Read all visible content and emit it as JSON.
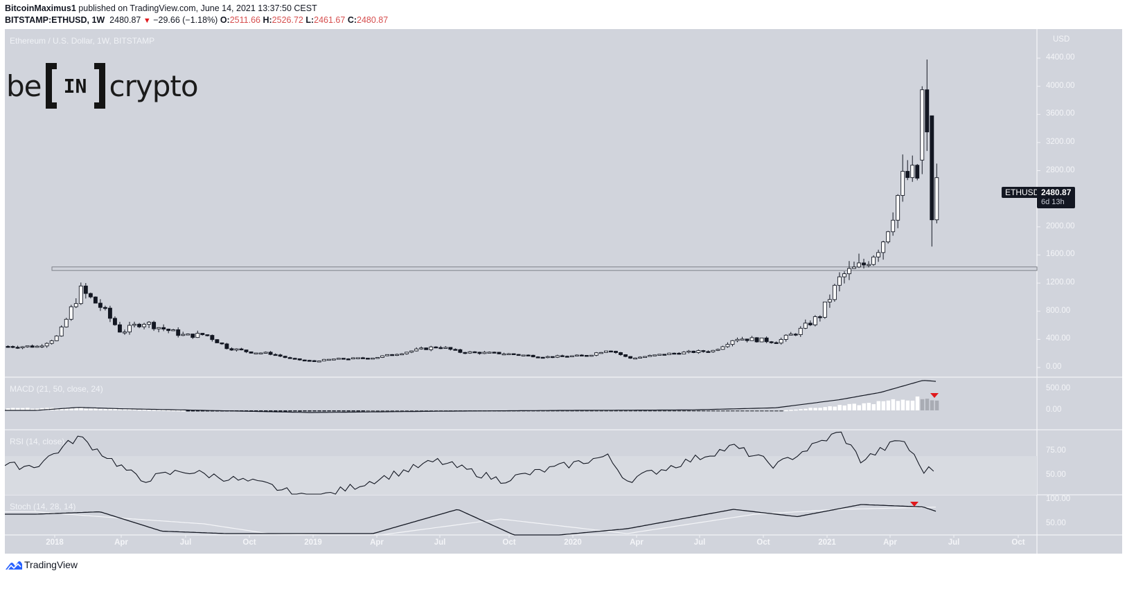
{
  "header": {
    "author": "BitcoinMaximus1",
    "published_text": "published on TradingView.com, June 14, 2021 13:37:50 CEST",
    "symbol": "BITSTAMP:ETHUSD, 1W",
    "last": "2480.87",
    "direction_glyph": "▼",
    "change": "−29.66 (−1.18%)",
    "o_label": "O:",
    "o": "2511.66",
    "h_label": "H:",
    "h": "2526.72",
    "l_label": "L:",
    "l": "2461.67",
    "c_label": "C:",
    "c": "2480.87"
  },
  "chart": {
    "title": "Ethereum / U.S. Dollar, 1W, BITSTAMP",
    "currency": "USD",
    "price_tag_symbol": "ETHUSD",
    "price_tag_value": "2480.87",
    "price_tag_countdown": "6d 13h",
    "price_ticks": [
      "4400.00",
      "4000.00",
      "3600.00",
      "3200.00",
      "2800.00",
      "2000.00",
      "1600.00",
      "1200.00",
      "800.00",
      "400.00",
      "0.00"
    ],
    "macd_title": "MACD (21, 50, close, 24)",
    "macd_ticks": [
      "500.00",
      "0.00"
    ],
    "rsi_title": "RSI (14, close)",
    "rsi_ticks": [
      "75.00",
      "50.00"
    ],
    "stoch_title": "Stoch (14, 28, 14)",
    "stoch_ticks": [
      "100.00",
      "50.00"
    ],
    "time_labels": [
      "2018",
      "Apr",
      "Jul",
      "Oct",
      "2019",
      "Apr",
      "Jul",
      "Oct",
      "2020",
      "Apr",
      "Jul",
      "Oct",
      "2021",
      "Apr",
      "Jul",
      "Oct"
    ],
    "colors": {
      "background": "#d1d4dc",
      "rsi_band": "#d8dbe1",
      "candle_up": "#ffffff",
      "candle_down": "#131722",
      "signal_marker": "#e0181c",
      "axis_text": "#f4f5f8",
      "resistance_line": "#7d8089"
    }
  },
  "logo": {
    "left": "be",
    "middle": "IN",
    "right": "crypto"
  },
  "footer": {
    "brand": "TradingView"
  },
  "chart_data": [
    {
      "type": "candlestick",
      "title": "Ethereum / U.S. Dollar, 1W, BITSTAMP",
      "ylabel": "USD",
      "ylim": [
        0,
        4600
      ],
      "x_range": [
        "2017-10",
        "2021-10"
      ],
      "resistance_zone": [
        1380,
        1430
      ],
      "last_close": 2480.87,
      "annotations": [
        "Horizontal resistance box near 1400 from Jan 2018 high to 2021",
        "Price label ETHUSD 2480.87, 6d 13h"
      ],
      "weekly_closes_approx": {
        "x": [
          "2017-11",
          "2017-12",
          "2018-01",
          "2018-02",
          "2018-03",
          "2018-04",
          "2018-05",
          "2018-06",
          "2018-07",
          "2018-08",
          "2018-09",
          "2018-10",
          "2018-11",
          "2018-12",
          "2019-01",
          "2019-03",
          "2019-05",
          "2019-06",
          "2019-07",
          "2019-09",
          "2019-11",
          "2020-01",
          "2020-02",
          "2020-03",
          "2020-05",
          "2020-07",
          "2020-08",
          "2020-10",
          "2020-11",
          "2020-12",
          "2021-01",
          "2021-02",
          "2021-03",
          "2021-04",
          "2021-05",
          "2021-06"
        ],
        "close": [
          300,
          450,
          1100,
          850,
          500,
          650,
          550,
          450,
          470,
          280,
          220,
          200,
          120,
          90,
          120,
          140,
          250,
          300,
          220,
          200,
          150,
          170,
          260,
          130,
          200,
          240,
          420,
          370,
          520,
          740,
          1300,
          1450,
          1800,
          2700,
          2700,
          2480
        ]
      },
      "notable": {
        "ath_high": 4380,
        "may_2021_low": 1720,
        "jan_2018_high": 1420
      }
    },
    {
      "type": "line+histogram",
      "title": "MACD (21, 50, close, 24)",
      "ylim": [
        -150,
        800
      ],
      "ticks": [
        500,
        0
      ],
      "annotations": [
        "Red down-triangle above histogram near June 2021 (bearish divergence)"
      ],
      "series": [
        {
          "name": "MACD",
          "x": [
            "2017-11",
            "2018-01",
            "2018-03",
            "2018-06",
            "2018-09",
            "2018-12",
            "2019-06",
            "2019-12",
            "2020-06",
            "2020-10",
            "2021-01",
            "2021-03",
            "2021-05",
            "2021-06"
          ],
          "values": [
            0,
            70,
            40,
            10,
            -20,
            -50,
            -20,
            0,
            10,
            60,
            250,
            420,
            700,
            660
          ]
        },
        {
          "name": "Histogram",
          "x": [
            "2018-01",
            "2018-04",
            "2018-09",
            "2019-01",
            "2020-10",
            "2021-02",
            "2021-05",
            "2021-06"
          ],
          "values": [
            50,
            20,
            -30,
            -20,
            -10,
            150,
            300,
            200
          ]
        }
      ]
    },
    {
      "type": "line",
      "title": "RSI (14, close)",
      "ylim": [
        25,
        100
      ],
      "ticks": [
        75,
        50
      ],
      "band": [
        30,
        70
      ],
      "series": [
        {
          "name": "RSI",
          "x": [
            "2017-11",
            "2018-01",
            "2018-04",
            "2018-06",
            "2018-10",
            "2018-12",
            "2019-06",
            "2019-09",
            "2020-02",
            "2020-03",
            "2020-08",
            "2020-10",
            "2021-01",
            "2021-02",
            "2021-04",
            "2021-05",
            "2021-06"
          ],
          "values": [
            60,
            90,
            45,
            55,
            40,
            25,
            65,
            45,
            70,
            45,
            80,
            60,
            95,
            65,
            88,
            55,
            58
          ]
        }
      ]
    },
    {
      "type": "line",
      "title": "Stoch (14, 28, 14)",
      "ylim": [
        25,
        110
      ],
      "ticks": [
        100,
        50
      ],
      "annotations": [
        "Red down-triangle at bearish cross May 2021"
      ],
      "series": [
        {
          "name": "%K",
          "x": [
            "2017-11",
            "2018-02",
            "2018-05",
            "2018-08",
            "2019-03",
            "2019-07",
            "2019-10",
            "2020-03",
            "2020-08",
            "2020-11",
            "2021-02",
            "2021-05",
            "2021-06"
          ],
          "values": [
            70,
            75,
            35,
            30,
            30,
            80,
            20,
            40,
            80,
            65,
            90,
            85,
            70
          ]
        },
        {
          "name": "%D",
          "x": [
            "2017-11",
            "2018-02",
            "2018-07",
            "2018-10",
            "2019-03",
            "2019-09",
            "2020-03",
            "2020-09",
            "2021-01",
            "2021-06"
          ],
          "values": [
            75,
            65,
            50,
            30,
            25,
            60,
            30,
            70,
            80,
            85
          ]
        }
      ]
    }
  ]
}
